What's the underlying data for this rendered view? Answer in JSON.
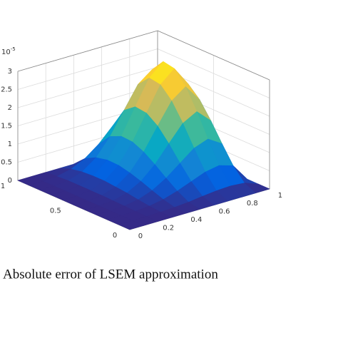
{
  "chart_data": {
    "type": "surface",
    "x": [
      0,
      0.1,
      0.2,
      0.3,
      0.4,
      0.5,
      0.6,
      0.7,
      0.8,
      0.9,
      1
    ],
    "y": [
      0,
      0.1,
      0.2,
      0.3,
      0.4,
      0.5,
      0.6,
      0.7,
      0.8,
      0.9,
      1
    ],
    "z": [
      [
        0,
        0,
        0,
        0,
        0,
        0,
        0,
        0,
        0,
        0,
        0
      ],
      [
        0,
        0,
        0,
        0.01,
        0.03,
        0.06,
        0.11,
        0.15,
        0.17,
        0.14,
        0
      ],
      [
        0,
        0,
        0.01,
        0.04,
        0.11,
        0.23,
        0.38,
        0.53,
        0.6,
        0.48,
        0
      ],
      [
        0,
        0,
        0.02,
        0.08,
        0.22,
        0.45,
        0.75,
        1.05,
        1.19,
        0.95,
        0
      ],
      [
        0,
        0,
        0.03,
        0.13,
        0.34,
        0.69,
        1.15,
        1.6,
        1.81,
        1.45,
        0
      ],
      [
        0,
        0,
        0.04,
        0.16,
        0.44,
        0.9,
        1.5,
        2.08,
        2.36,
        1.89,
        0
      ],
      [
        0,
        0,
        0.04,
        0.19,
        0.51,
        1.04,
        1.72,
        2.39,
        2.72,
        2.18,
        0
      ],
      [
        0,
        0,
        0.04,
        0.19,
        0.52,
        1.06,
        1.76,
        2.44,
        2.78,
        2.23,
        0
      ],
      [
        0,
        0,
        0.04,
        0.17,
        0.45,
        0.92,
        1.53,
        2.13,
        2.42,
        1.94,
        0
      ],
      [
        0,
        0,
        0.02,
        0.11,
        0.29,
        0.58,
        0.97,
        1.35,
        1.53,
        1.23,
        0
      ],
      [
        0,
        0,
        0,
        0,
        0,
        0,
        0,
        0,
        0,
        0,
        0
      ]
    ],
    "xlim": [
      0,
      1
    ],
    "ylim": [
      0,
      1
    ],
    "zlim": [
      0,
      3
    ],
    "xticks": [
      0,
      0.2,
      0.4,
      0.6,
      0.8,
      1
    ],
    "yticks": [
      0,
      0.5,
      1
    ],
    "zticks": [
      0,
      0.5,
      1,
      1.5,
      2,
      2.5,
      3
    ],
    "z_multiplier_base": "10",
    "z_multiplier_exponent": "-5",
    "grid": true,
    "colormap": [
      "#352a87",
      "#0363e1",
      "#1485d4",
      "#06a7c6",
      "#38b99e",
      "#92bf73",
      "#d9ba56",
      "#fcce2e",
      "#f9fb0e"
    ]
  },
  "caption": "Absolute error of LSEM approximation"
}
